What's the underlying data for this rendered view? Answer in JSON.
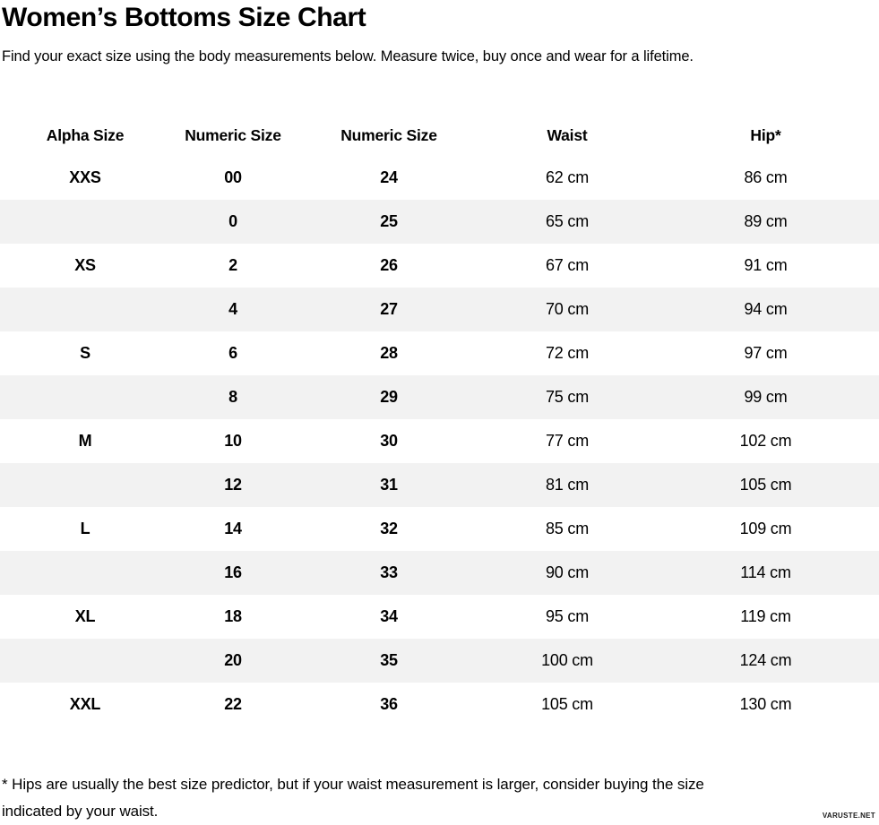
{
  "page": {
    "title": "Women’s Bottoms Size Chart",
    "subtitle": "Find your exact size using the body measurements below. Measure twice, buy once and wear for a lifetime.",
    "footnote_line1": "* Hips are usually the best size predictor, but if your waist measurement is larger, consider buying the size",
    "footnote_line2": "indicated by your waist.",
    "watermark": "VARUSTE.NET"
  },
  "colors": {
    "background": "#ffffff",
    "text": "#000000",
    "row_stripe": "#f2f2f2"
  },
  "chart_data": {
    "type": "table",
    "title": "Women’s Bottoms Size Chart",
    "columns": [
      "Alpha Size",
      "Numeric Size",
      "Numeric Size",
      "Waist",
      "Hip*"
    ],
    "rows": [
      [
        "XXS",
        "00",
        "24",
        "62 cm",
        "86 cm"
      ],
      [
        "",
        "0",
        "25",
        "65 cm",
        "89 cm"
      ],
      [
        "XS",
        "2",
        "26",
        "67 cm",
        "91 cm"
      ],
      [
        "",
        "4",
        "27",
        "70 cm",
        "94 cm"
      ],
      [
        "S",
        "6",
        "28",
        "72 cm",
        "97 cm"
      ],
      [
        "",
        "8",
        "29",
        "75 cm",
        "99 cm"
      ],
      [
        "M",
        "10",
        "30",
        "77 cm",
        "102 cm"
      ],
      [
        "",
        "12",
        "31",
        "81 cm",
        "105 cm"
      ],
      [
        "L",
        "14",
        "32",
        "85 cm",
        "109 cm"
      ],
      [
        "",
        "16",
        "33",
        "90 cm",
        "114 cm"
      ],
      [
        "XL",
        "18",
        "34",
        "95 cm",
        "119 cm"
      ],
      [
        "",
        "20",
        "35",
        "100 cm",
        "124 cm"
      ],
      [
        "XXL",
        "22",
        "36",
        "105 cm",
        "130 cm"
      ]
    ],
    "layout": {
      "striped_rows": "odd",
      "gridlines": false,
      "bold_columns": [
        0,
        1,
        2
      ]
    }
  }
}
